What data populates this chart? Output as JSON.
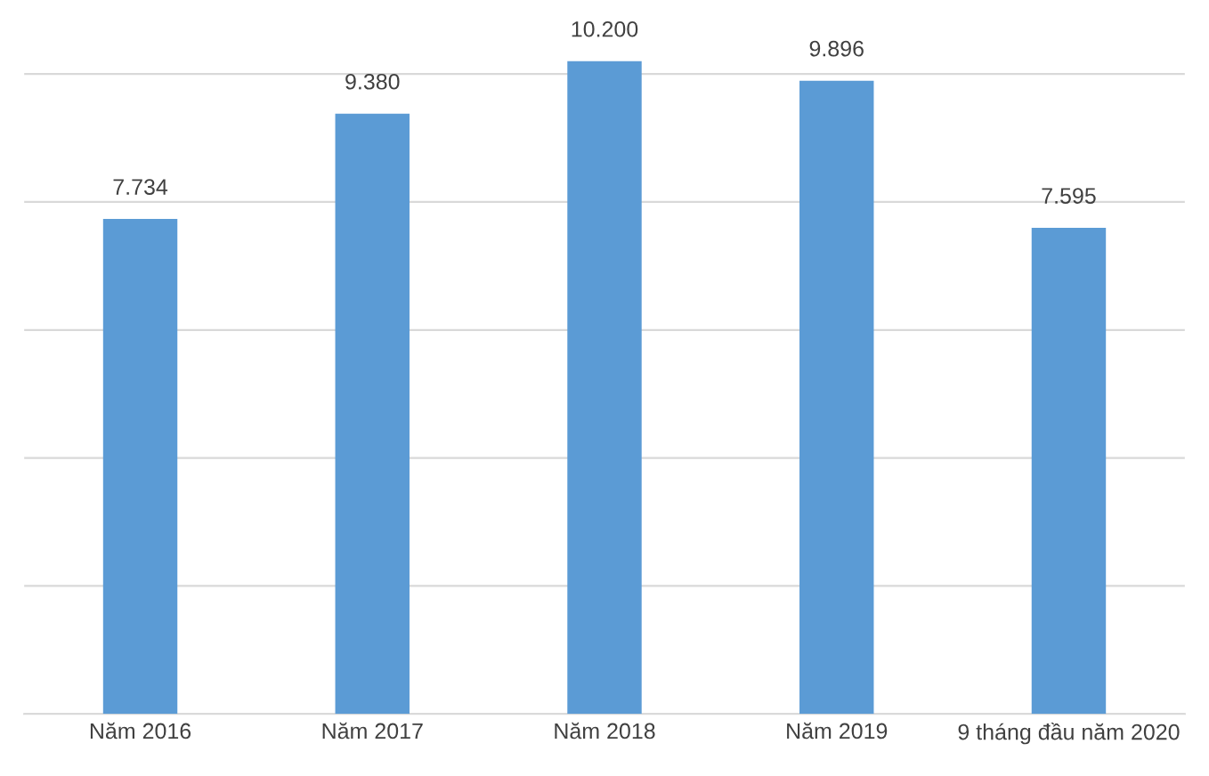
{
  "chart_data": {
    "type": "bar",
    "categories": [
      "Năm 2016",
      "Năm 2017",
      "Năm 2018",
      "Năm 2019",
      "9 tháng đầu năm 2020"
    ],
    "values": [
      7734,
      9380,
      10200,
      9896,
      7595
    ],
    "value_labels": [
      "7.734",
      "9.380",
      "10.200",
      "9.896",
      "7.595"
    ],
    "color": "#5b9bd5",
    "tick_labels": "x",
    "grid": "y"
  }
}
